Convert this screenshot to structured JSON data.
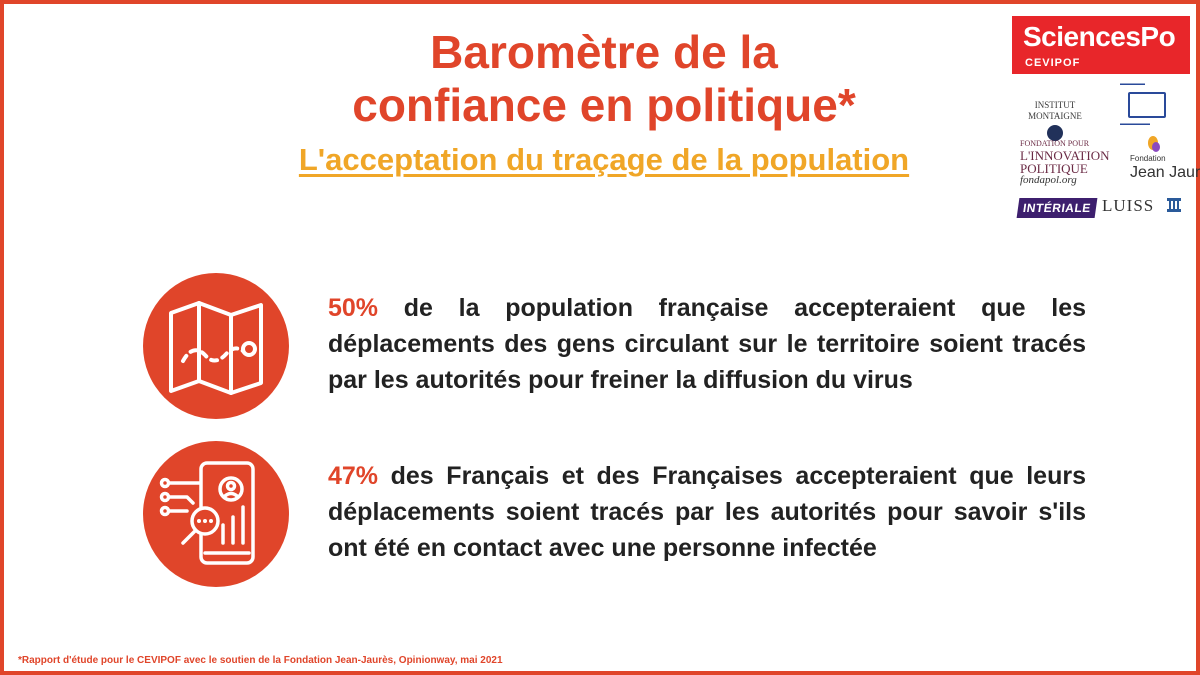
{
  "title": {
    "line1": "Baromètre de la",
    "line2": "confiance en politique*",
    "subtitle": "L'acceptation du traçage de la population"
  },
  "logos": {
    "sciencespo": {
      "name": "SciencesPo",
      "sub": "CEVIPOF"
    },
    "institut_montaigne": {
      "line1": "INSTITUT",
      "line2": "MONTAIGNE"
    },
    "fondapol": {
      "line1": "FONDATION POUR",
      "line2": "L'INNOVATION",
      "line3": "POLITIQUE",
      "url": "fondapol.org"
    },
    "jean_jaures": {
      "small": "Fondation",
      "big": "Jean Jaurès"
    },
    "interiale": "INTÉRIALE",
    "luiss": "LUISS"
  },
  "stats": [
    {
      "percent": "50%",
      "text": " de la population française accepteraient que les déplacements des gens circulant sur le territoire soient tracés par les autorités pour freiner la diffusion du virus",
      "icon": "map-route-icon"
    },
    {
      "percent": "47%",
      "text": " des Français et des Françaises accepteraient que leurs déplacements soient tracés par les autorités pour savoir s'ils ont été en contact avec une personne infectée",
      "icon": "phone-tracking-icon"
    }
  ],
  "footnote": "*Rapport d'étude pour le CEVIPOF avec le soutien de la Fondation Jean-Jaurès, Opinionway, mai 2021",
  "colors": {
    "accent": "#e0452a",
    "subtitle": "#f0a627",
    "text": "#222222"
  }
}
